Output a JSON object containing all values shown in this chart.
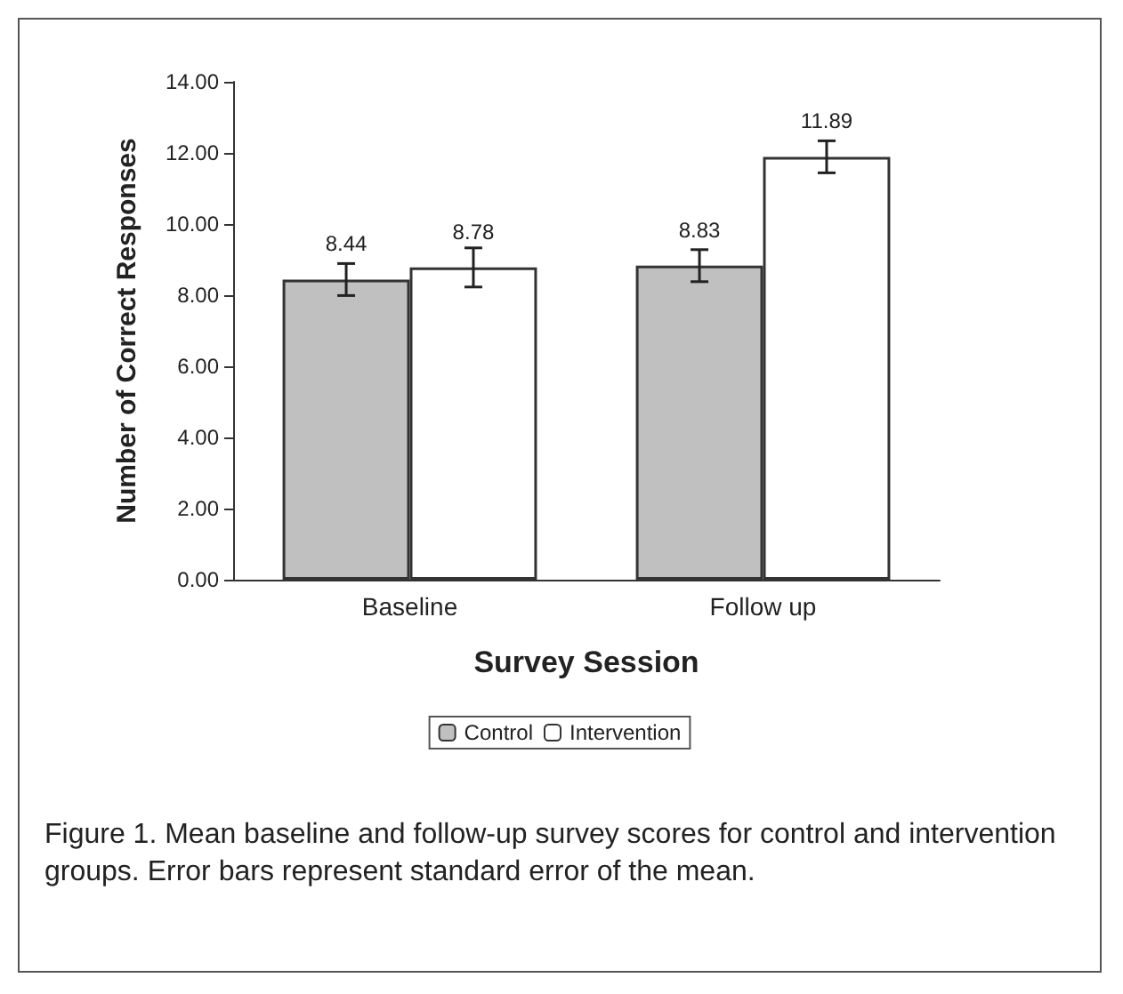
{
  "chart_data": {
    "type": "bar",
    "xlabel": "Survey Session",
    "ylabel": "Number of Correct Responses",
    "categories": [
      "Baseline",
      "Follow up"
    ],
    "series": [
      {
        "name": "Control",
        "color": "#c0c0c0",
        "values": [
          8.44,
          8.83
        ],
        "errors": [
          0.45,
          0.45
        ]
      },
      {
        "name": "Intervention",
        "color": "#ffffff",
        "values": [
          8.78,
          11.89
        ],
        "errors": [
          0.55,
          0.45
        ]
      }
    ],
    "ylim": [
      0,
      14
    ],
    "yticks": [
      {
        "value": 0,
        "label": "0.00"
      },
      {
        "value": 2,
        "label": "2.00"
      },
      {
        "value": 4,
        "label": "4.00"
      },
      {
        "value": 6,
        "label": "6.00"
      },
      {
        "value": 8,
        "label": "8.00"
      },
      {
        "value": 10,
        "label": "10.00"
      },
      {
        "value": 12,
        "label": "12.00"
      },
      {
        "value": 14,
        "label": "14.00"
      }
    ],
    "data_labels": true,
    "grid": false,
    "legend": "bottom",
    "annotations": [
      "Figure 1.  Mean baseline and follow-up survey scores for control and intervention groups. Error bars represent standard error of the mean."
    ]
  }
}
